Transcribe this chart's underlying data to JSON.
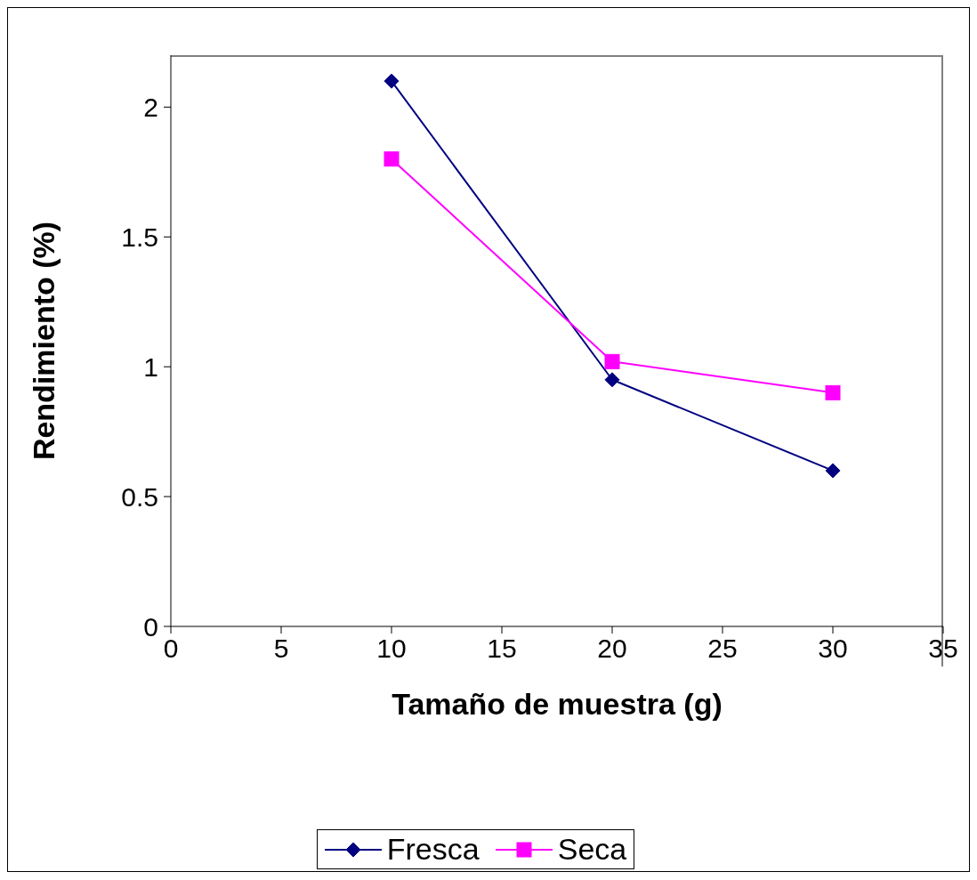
{
  "chart_data": {
    "type": "line",
    "xlabel": "Tamaño de muestra (g)",
    "ylabel": "Rendimiento (%)",
    "x": [
      10,
      20,
      30
    ],
    "series": [
      {
        "name": "Fresca",
        "color": "#000080",
        "marker": "diamond",
        "values": [
          2.1,
          0.95,
          0.6
        ]
      },
      {
        "name": "Seca",
        "color": "#ff00ff",
        "marker": "square",
        "values": [
          1.8,
          1.02,
          0.9
        ]
      }
    ],
    "xlim": [
      0,
      35
    ],
    "xticks": [
      0,
      5,
      10,
      15,
      20,
      25,
      30,
      35
    ],
    "ylim": [
      0,
      2.2
    ],
    "yticks": [
      0,
      0.5,
      1,
      1.5,
      2
    ],
    "grid": false,
    "legend": "bottom"
  }
}
